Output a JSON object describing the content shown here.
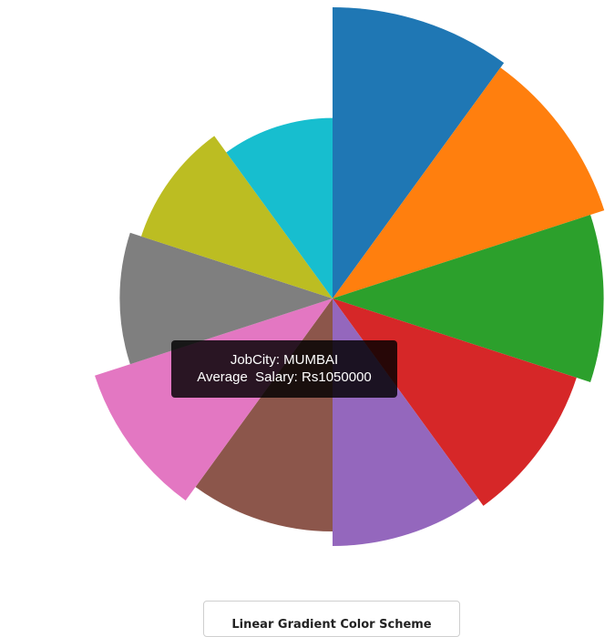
{
  "chart_data": {
    "type": "pie",
    "slices": [
      {
        "weight": 1.0,
        "color": "#1f77b4"
      },
      {
        "weight": 0.98,
        "color": "#ff7f0e"
      },
      {
        "weight": 0.93,
        "color": "#2ca02c"
      },
      {
        "weight": 0.88,
        "color": "#d62728"
      },
      {
        "weight": 0.85,
        "color": "#9467bd"
      },
      {
        "weight": 0.8,
        "color": "#8c564b"
      },
      {
        "weight": 0.77,
        "color": "#e377c2",
        "highlighted": true
      },
      {
        "weight": 0.73,
        "color": "#7f7f7f"
      },
      {
        "weight": 0.69,
        "color": "#bcbd22"
      },
      {
        "weight": 0.62,
        "color": "#17becf"
      }
    ],
    "colors": [
      "#1f77b4",
      "#ff7f0e",
      "#2ca02c",
      "#d62728",
      "#9467bd",
      "#8c564b",
      "#e377c2",
      "#7f7f7f",
      "#bcbd22",
      "#17becf"
    ]
  },
  "tooltip": {
    "city_label": "JobCity:",
    "city_value": "MUMBAI",
    "salary_label": "Average  Salary:",
    "salary_value": "Rs1050000"
  },
  "button": {
    "label": "Linear Gradient Color Scheme"
  }
}
